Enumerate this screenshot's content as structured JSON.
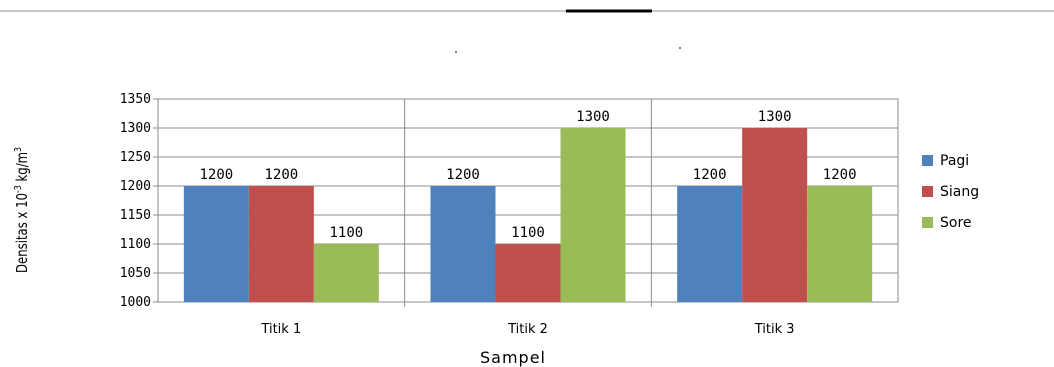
{
  "chart_data": {
    "type": "bar",
    "categories": [
      "Titik 1",
      "Titik 2",
      "Titik 3"
    ],
    "series": [
      {
        "name": "Pagi",
        "values": [
          1200,
          1200,
          1200
        ],
        "color": "#4f81bd"
      },
      {
        "name": "Siang",
        "values": [
          1200,
          1100,
          1300
        ],
        "color": "#c0504d"
      },
      {
        "name": "Sore",
        "values": [
          1100,
          1300,
          1200
        ],
        "color": "#9bbb59"
      }
    ],
    "xlabel": "Sampel",
    "ylabel_prefix": "Densitas x 10",
    "ylabel_exp": "-3",
    "ylabel_suffix": " kg/m",
    "ylabel_exp2": "3",
    "ylim": [
      1000,
      1350
    ],
    "yticks": [
      1000,
      1050,
      1100,
      1150,
      1200,
      1250,
      1300,
      1350
    ],
    "grid": true,
    "legend": "right",
    "data_labels": true
  }
}
